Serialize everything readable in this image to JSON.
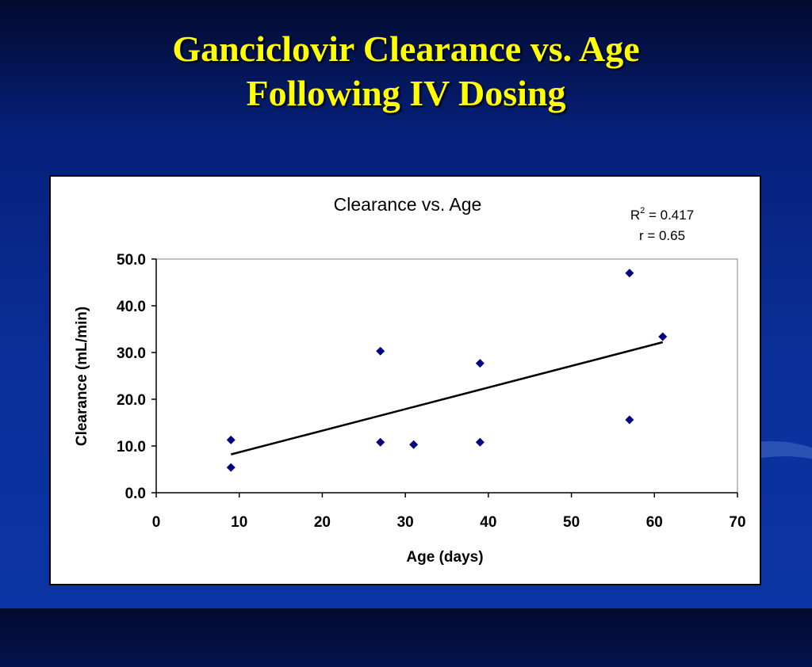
{
  "slide": {
    "title_line1": "Ganciclovir Clearance vs. Age",
    "title_line2": "Following IV Dosing"
  },
  "colors": {
    "background": "#0a2f9a",
    "title": "#ffff00",
    "marker": "#000080",
    "trendline": "#000000"
  },
  "chart_data": {
    "type": "scatter",
    "title": "Clearance vs. Age",
    "xlabel": "Age (days)",
    "ylabel": "Clearance (mL/min)",
    "xlim": [
      0,
      70
    ],
    "ylim": [
      0,
      50
    ],
    "xticks": [
      "0",
      "10",
      "20",
      "30",
      "40",
      "50",
      "60",
      "70"
    ],
    "yticks": [
      "0.0",
      "10.0",
      "20.0",
      "30.0",
      "40.0",
      "50.0"
    ],
    "grid": false,
    "legend": "none",
    "marker": "diamond",
    "points": [
      {
        "x": 9,
        "y": 11.3
      },
      {
        "x": 9,
        "y": 5.4
      },
      {
        "x": 27,
        "y": 30.3
      },
      {
        "x": 27,
        "y": 10.8
      },
      {
        "x": 31,
        "y": 10.3
      },
      {
        "x": 39,
        "y": 27.7
      },
      {
        "x": 39,
        "y": 10.8
      },
      {
        "x": 57,
        "y": 47.0
      },
      {
        "x": 57,
        "y": 15.6
      },
      {
        "x": 61,
        "y": 33.4
      }
    ],
    "trendline": {
      "type": "linear",
      "x": [
        9,
        61
      ],
      "y": [
        8.2,
        32.2
      ]
    },
    "annotation": {
      "r2_label": "R",
      "r2_sup": "2",
      "r2_value": " = 0.417",
      "r_text": "r = 0.65"
    }
  }
}
